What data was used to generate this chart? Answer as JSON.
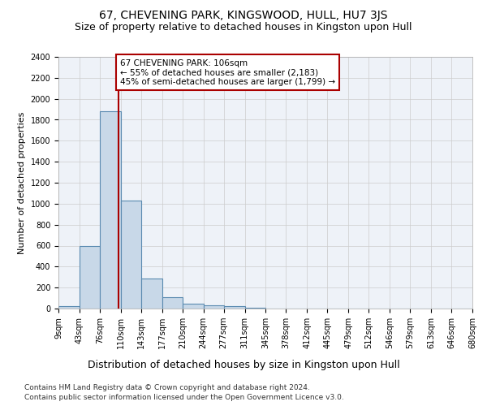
{
  "title": "67, CHEVENING PARK, KINGSWOOD, HULL, HU7 3JS",
  "subtitle": "Size of property relative to detached houses in Kingston upon Hull",
  "xlabel_bottom": "Distribution of detached houses by size in Kingston upon Hull",
  "ylabel": "Number of detached properties",
  "footnote1": "Contains HM Land Registry data © Crown copyright and database right 2024.",
  "footnote2": "Contains public sector information licensed under the Open Government Licence v3.0.",
  "bin_edges": [
    9,
    43,
    76,
    110,
    143,
    177,
    210,
    244,
    277,
    311,
    345,
    378,
    412,
    445,
    479,
    512,
    546,
    579,
    613,
    646,
    680
  ],
  "bar_heights": [
    20,
    600,
    1880,
    1030,
    290,
    110,
    50,
    30,
    20,
    5,
    0,
    0,
    0,
    0,
    0,
    0,
    0,
    0,
    0,
    0
  ],
  "bar_color": "#c8d8e8",
  "bar_edge_color": "#5a8ab0",
  "bar_edge_width": 0.8,
  "grid_color": "#cccccc",
  "bg_color": "#eef2f8",
  "property_size": 106,
  "vline_color": "#aa0000",
  "annotation_line1": "67 CHEVENING PARK: 106sqm",
  "annotation_line2": "← 55% of detached houses are smaller (2,183)",
  "annotation_line3": "45% of semi-detached houses are larger (1,799) →",
  "annotation_box_color": "#aa0000",
  "ylim": [
    0,
    2400
  ],
  "yticks": [
    0,
    200,
    400,
    600,
    800,
    1000,
    1200,
    1400,
    1600,
    1800,
    2000,
    2200,
    2400
  ],
  "title_fontsize": 10,
  "subtitle_fontsize": 9,
  "tick_label_fontsize": 7,
  "ylabel_fontsize": 8,
  "annotation_fontsize": 7.5,
  "footnote_fontsize": 6.5
}
